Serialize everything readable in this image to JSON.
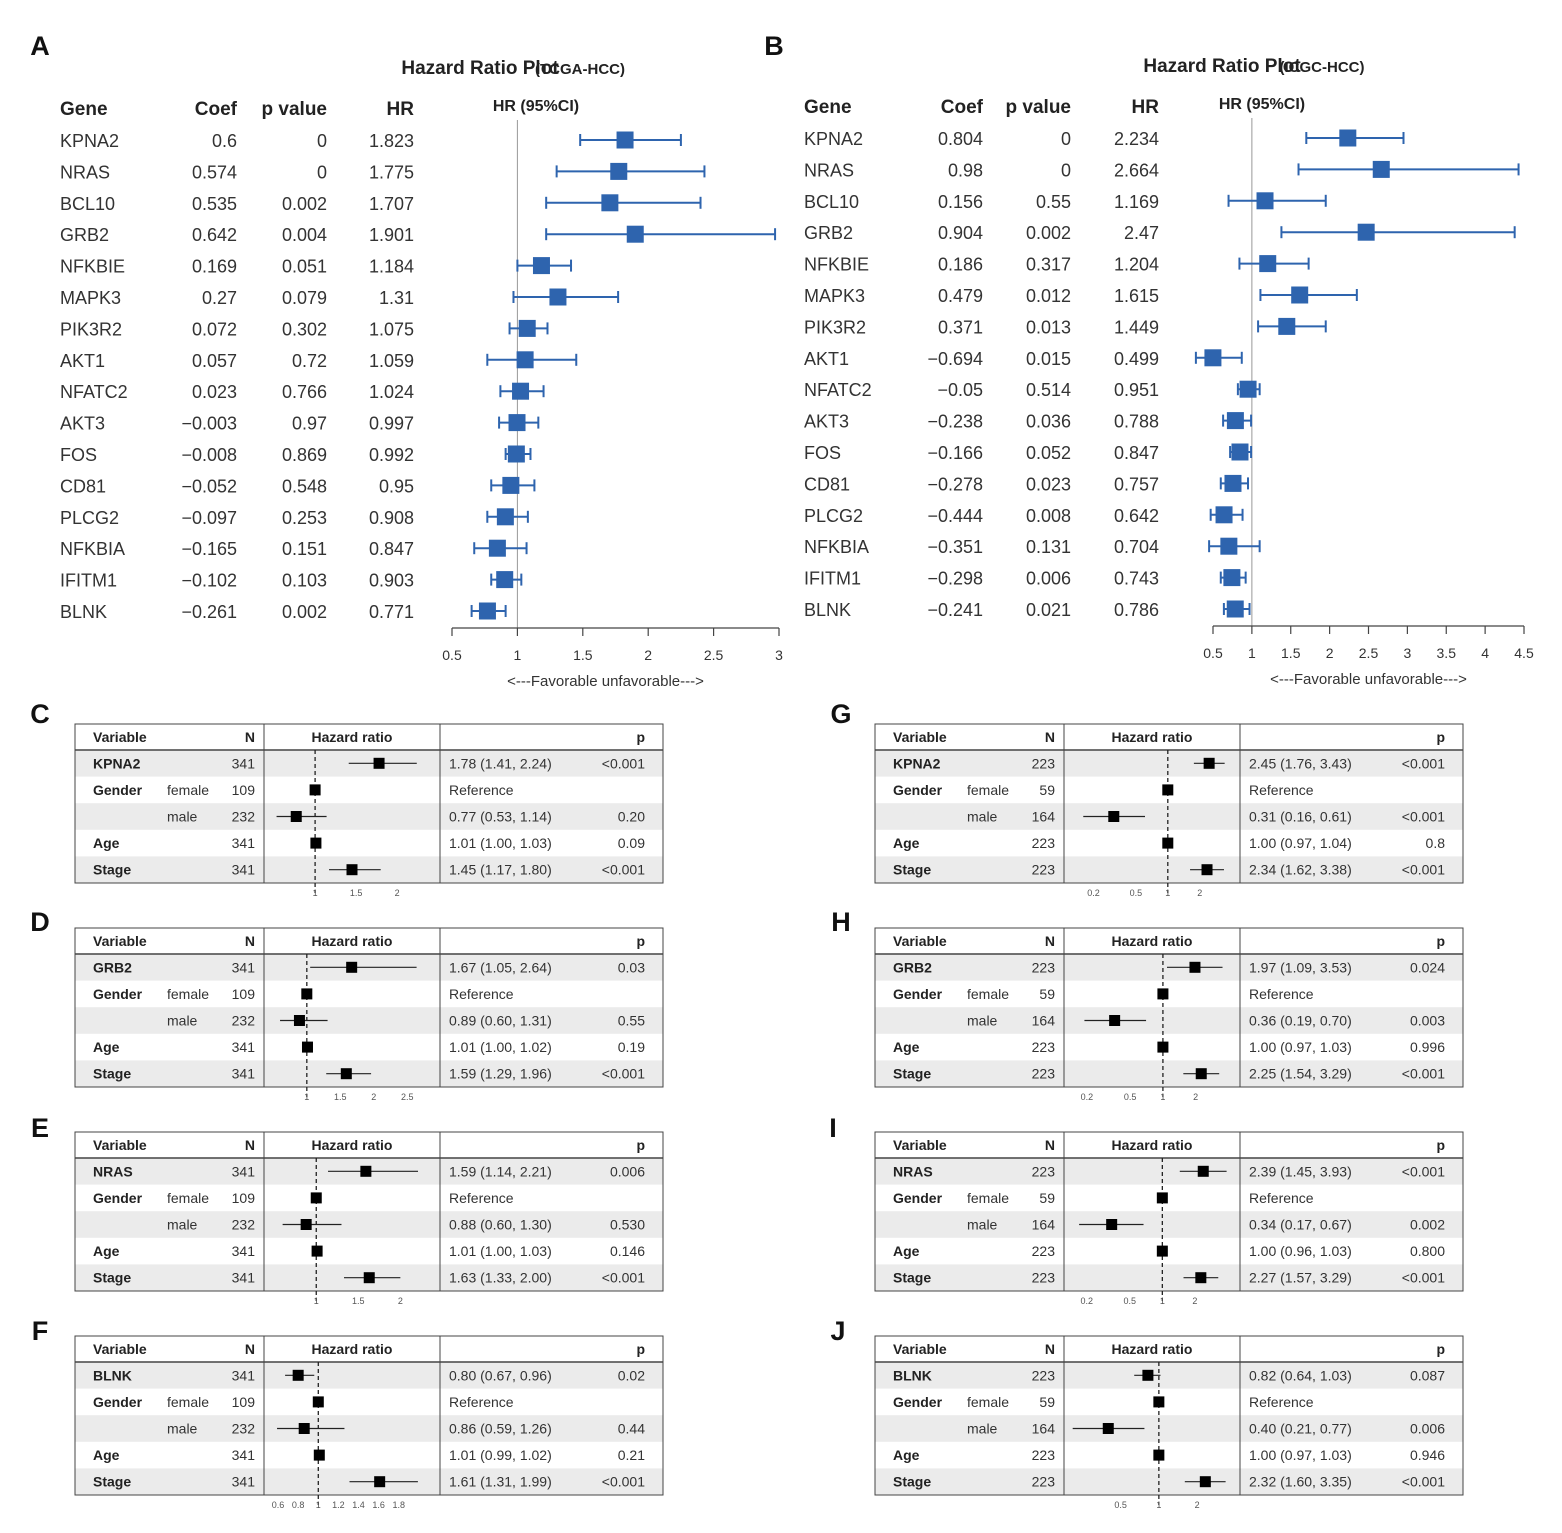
{
  "chart_data": {
    "type": "forest",
    "panels": [
      {
        "label": "A",
        "title": "Hazard Ratio Plot",
        "subtitle": "(TCGA-HCC)",
        "headers": [
          "Gene",
          "Coef",
          "p value",
          "HR",
          "HR (95%CI)"
        ],
        "xlim": [
          0.5,
          3
        ],
        "ticks": [
          "0.5",
          "1",
          "1.5",
          "2",
          "2.5",
          "3"
        ],
        "tick_values": [
          0.5,
          1,
          1.5,
          2,
          2.5,
          3
        ],
        "xnote": "<---Favorable  unfavorable--->",
        "rows": [
          {
            "gene": "KPNA2",
            "coef": "0.6",
            "p": "0",
            "hr": "1.823",
            "v": 1.823,
            "lo": 1.48,
            "hi": 2.25
          },
          {
            "gene": "NRAS",
            "coef": "0.574",
            "p": "0",
            "hr": "1.775",
            "v": 1.775,
            "lo": 1.3,
            "hi": 2.43
          },
          {
            "gene": "BCL10",
            "coef": "0.535",
            "p": "0.002",
            "hr": "1.707",
            "v": 1.707,
            "lo": 1.22,
            "hi": 2.4
          },
          {
            "gene": "GRB2",
            "coef": "0.642",
            "p": "0.004",
            "hr": "1.901",
            "v": 1.901,
            "lo": 1.22,
            "hi": 2.97
          },
          {
            "gene": "NFKBIE",
            "coef": "0.169",
            "p": "0.051",
            "hr": "1.184",
            "v": 1.184,
            "lo": 1.0,
            "hi": 1.41
          },
          {
            "gene": "MAPK3",
            "coef": "0.27",
            "p": "0.079",
            "hr": "1.31",
            "v": 1.31,
            "lo": 0.97,
            "hi": 1.77
          },
          {
            "gene": "PIK3R2",
            "coef": "0.072",
            "p": "0.302",
            "hr": "1.075",
            "v": 1.075,
            "lo": 0.94,
            "hi": 1.23
          },
          {
            "gene": "AKT1",
            "coef": "0.057",
            "p": "0.72",
            "hr": "1.059",
            "v": 1.059,
            "lo": 0.77,
            "hi": 1.45
          },
          {
            "gene": "NFATC2",
            "coef": "0.023",
            "p": "0.766",
            "hr": "1.024",
            "v": 1.024,
            "lo": 0.87,
            "hi": 1.2
          },
          {
            "gene": "AKT3",
            "coef": "−0.003",
            "p": "0.97",
            "hr": "0.997",
            "v": 0.997,
            "lo": 0.86,
            "hi": 1.16
          },
          {
            "gene": "FOS",
            "coef": "−0.008",
            "p": "0.869",
            "hr": "0.992",
            "v": 0.992,
            "lo": 0.91,
            "hi": 1.1
          },
          {
            "gene": "CD81",
            "coef": "−0.052",
            "p": "0.548",
            "hr": "0.95",
            "v": 0.95,
            "lo": 0.8,
            "hi": 1.13
          },
          {
            "gene": "PLCG2",
            "coef": "−0.097",
            "p": "0.253",
            "hr": "0.908",
            "v": 0.908,
            "lo": 0.77,
            "hi": 1.08
          },
          {
            "gene": "NFKBIA",
            "coef": "−0.165",
            "p": "0.151",
            "hr": "0.847",
            "v": 0.847,
            "lo": 0.67,
            "hi": 1.07
          },
          {
            "gene": "IFITM1",
            "coef": "−0.102",
            "p": "0.103",
            "hr": "0.903",
            "v": 0.903,
            "lo": 0.8,
            "hi": 1.03
          },
          {
            "gene": "BLNK",
            "coef": "−0.261",
            "p": "0.002",
            "hr": "0.771",
            "v": 0.771,
            "lo": 0.65,
            "hi": 0.91
          }
        ]
      },
      {
        "label": "B",
        "title": "Hazard Ratio Plot",
        "subtitle": "(ICGC-HCC)",
        "headers": [
          "Gene",
          "Coef",
          "p value",
          "HR",
          "HR (95%CI)"
        ],
        "xlim": [
          0.5,
          4.5
        ],
        "ticks": [
          "0.5",
          "1",
          "1.5",
          "2",
          "2.5",
          "3",
          "3.5",
          "4",
          "4.5"
        ],
        "tick_values": [
          0.5,
          1,
          1.5,
          2,
          2.5,
          3,
          3.5,
          4,
          4.5
        ],
        "xnote": "<---Favorable  unfavorable--->",
        "rows": [
          {
            "gene": "KPNA2",
            "coef": "0.804",
            "p": "0",
            "hr": "2.234",
            "v": 2.234,
            "lo": 1.7,
            "hi": 2.95
          },
          {
            "gene": "NRAS",
            "coef": "0.98",
            "p": "0",
            "hr": "2.664",
            "v": 2.664,
            "lo": 1.6,
            "hi": 4.43
          },
          {
            "gene": "BCL10",
            "coef": "0.156",
            "p": "0.55",
            "hr": "1.169",
            "v": 1.169,
            "lo": 0.7,
            "hi": 1.95
          },
          {
            "gene": "GRB2",
            "coef": "0.904",
            "p": "0.002",
            "hr": "2.47",
            "v": 2.47,
            "lo": 1.38,
            "hi": 4.38
          },
          {
            "gene": "NFKBIE",
            "coef": "0.186",
            "p": "0.317",
            "hr": "1.204",
            "v": 1.204,
            "lo": 0.84,
            "hi": 1.73
          },
          {
            "gene": "MAPK3",
            "coef": "0.479",
            "p": "0.012",
            "hr": "1.615",
            "v": 1.615,
            "lo": 1.11,
            "hi": 2.35
          },
          {
            "gene": "PIK3R2",
            "coef": "0.371",
            "p": "0.013",
            "hr": "1.449",
            "v": 1.449,
            "lo": 1.08,
            "hi": 1.95
          },
          {
            "gene": "AKT1",
            "coef": "−0.694",
            "p": "0.015",
            "hr": "0.499",
            "v": 0.499,
            "lo": 0.28,
            "hi": 0.87
          },
          {
            "gene": "NFATC2",
            "coef": "−0.05",
            "p": "0.514",
            "hr": "0.951",
            "v": 0.951,
            "lo": 0.82,
            "hi": 1.1
          },
          {
            "gene": "AKT3",
            "coef": "−0.238",
            "p": "0.036",
            "hr": "0.788",
            "v": 0.788,
            "lo": 0.63,
            "hi": 0.99
          },
          {
            "gene": "FOS",
            "coef": "−0.166",
            "p": "0.052",
            "hr": "0.847",
            "v": 0.847,
            "lo": 0.72,
            "hi": 0.99
          },
          {
            "gene": "CD81",
            "coef": "−0.278",
            "p": "0.023",
            "hr": "0.757",
            "v": 0.757,
            "lo": 0.6,
            "hi": 0.95
          },
          {
            "gene": "PLCG2",
            "coef": "−0.444",
            "p": "0.008",
            "hr": "0.642",
            "v": 0.642,
            "lo": 0.47,
            "hi": 0.88
          },
          {
            "gene": "NFKBIA",
            "coef": "−0.351",
            "p": "0.131",
            "hr": "0.704",
            "v": 0.704,
            "lo": 0.45,
            "hi": 1.1
          },
          {
            "gene": "IFITM1",
            "coef": "−0.298",
            "p": "0.006",
            "hr": "0.743",
            "v": 0.743,
            "lo": 0.6,
            "hi": 0.92
          },
          {
            "gene": "BLNK",
            "coef": "−0.241",
            "p": "0.021",
            "hr": "0.786",
            "v": 0.786,
            "lo": 0.64,
            "hi": 0.97
          }
        ]
      }
    ],
    "tables": [
      {
        "label": "C",
        "scale": "linear",
        "xlim": [
          0.45,
          2.45
        ],
        "ticks": [
          "1",
          "1.5",
          "2"
        ],
        "rows": [
          {
            "var": "KPNA2",
            "level": "",
            "n": "341",
            "ci": "1.78 (1.41, 2.24)",
            "p": "<0.001",
            "v": 1.78,
            "lo": 1.41,
            "hi": 2.24
          },
          {
            "var": "Gender",
            "level": "female",
            "n": "109",
            "ci": "Reference",
            "p": "",
            "v": 1.0,
            "lo": null,
            "hi": null
          },
          {
            "var": "",
            "level": "male",
            "n": "232",
            "ci": "0.77 (0.53, 1.14)",
            "p": "0.20",
            "v": 0.77,
            "lo": 0.53,
            "hi": 1.14
          },
          {
            "var": "Age",
            "level": "",
            "n": "341",
            "ci": "1.01 (1.00, 1.03)",
            "p": "0.09",
            "v": 1.01,
            "lo": 1.0,
            "hi": 1.03
          },
          {
            "var": "Stage",
            "level": "",
            "n": "341",
            "ci": "1.45 (1.17, 1.80)",
            "p": "<0.001",
            "v": 1.45,
            "lo": 1.17,
            "hi": 1.8
          }
        ]
      },
      {
        "label": "D",
        "scale": "linear",
        "xlim": [
          0.45,
          2.9
        ],
        "ticks": [
          "1",
          "1.5",
          "2",
          "2.5"
        ],
        "rows": [
          {
            "var": "GRB2",
            "level": "",
            "n": "341",
            "ci": "1.67 (1.05, 2.64)",
            "p": "0.03",
            "v": 1.67,
            "lo": 1.05,
            "hi": 2.64
          },
          {
            "var": "Gender",
            "level": "female",
            "n": "109",
            "ci": "Reference",
            "p": "",
            "v": 1.0,
            "lo": null,
            "hi": null
          },
          {
            "var": "",
            "level": "male",
            "n": "232",
            "ci": "0.89 (0.60, 1.31)",
            "p": "0.55",
            "v": 0.89,
            "lo": 0.6,
            "hi": 1.31
          },
          {
            "var": "Age",
            "level": "",
            "n": "341",
            "ci": "1.01 (1.00, 1.02)",
            "p": "0.19",
            "v": 1.01,
            "lo": 1.0,
            "hi": 1.02
          },
          {
            "var": "Stage",
            "level": "",
            "n": "341",
            "ci": "1.59 (1.29, 1.96)",
            "p": "<0.001",
            "v": 1.59,
            "lo": 1.29,
            "hi": 1.96
          }
        ]
      },
      {
        "label": "E",
        "scale": "linear",
        "xlim": [
          0.45,
          2.4
        ],
        "ticks": [
          "1",
          "1.5",
          "2"
        ],
        "rows": [
          {
            "var": "NRAS",
            "level": "",
            "n": "341",
            "ci": "1.59 (1.14, 2.21)",
            "p": "0.006",
            "v": 1.59,
            "lo": 1.14,
            "hi": 2.21
          },
          {
            "var": "Gender",
            "level": "female",
            "n": "109",
            "ci": "Reference",
            "p": "",
            "v": 1.0,
            "lo": null,
            "hi": null
          },
          {
            "var": "",
            "level": "male",
            "n": "232",
            "ci": "0.88 (0.60, 1.30)",
            "p": "0.530",
            "v": 0.88,
            "lo": 0.6,
            "hi": 1.3
          },
          {
            "var": "Age",
            "level": "",
            "n": "341",
            "ci": "1.01 (1.00, 1.03)",
            "p": "0.146",
            "v": 1.01,
            "lo": 1.0,
            "hi": 1.03
          },
          {
            "var": "Stage",
            "level": "",
            "n": "341",
            "ci": "1.63 (1.33, 2.00)",
            "p": "<0.001",
            "v": 1.63,
            "lo": 1.33,
            "hi": 2.0
          }
        ]
      },
      {
        "label": "F",
        "scale": "linear",
        "xlim": [
          0.52,
          2.15
        ],
        "ticks": [
          "0.6",
          "0.8",
          "1",
          "1.2",
          "1.4",
          "1.6",
          "1.8"
        ],
        "rows": [
          {
            "var": "BLNK",
            "level": "",
            "n": "341",
            "ci": "0.80 (0.67, 0.96)",
            "p": "0.02",
            "v": 0.8,
            "lo": 0.67,
            "hi": 0.96
          },
          {
            "var": "Gender",
            "level": "female",
            "n": "109",
            "ci": "Reference",
            "p": "",
            "v": 1.0,
            "lo": null,
            "hi": null
          },
          {
            "var": "",
            "level": "male",
            "n": "232",
            "ci": "0.86 (0.59, 1.26)",
            "p": "0.44",
            "v": 0.86,
            "lo": 0.59,
            "hi": 1.26
          },
          {
            "var": "Age",
            "level": "",
            "n": "341",
            "ci": "1.01 (0.99, 1.02)",
            "p": "0.21",
            "v": 1.01,
            "lo": 0.99,
            "hi": 1.02
          },
          {
            "var": "Stage",
            "level": "",
            "n": "341",
            "ci": "1.61 (1.31, 1.99)",
            "p": "<0.001",
            "v": 1.61,
            "lo": 1.31,
            "hi": 1.99
          }
        ]
      },
      {
        "label": "G",
        "scale": "log",
        "xlim": [
          0.12,
          4.2
        ],
        "ticks": [
          "0.2",
          "0.5",
          "1",
          "2"
        ],
        "rows": [
          {
            "var": "KPNA2",
            "level": "",
            "n": "223",
            "ci": "2.45 (1.76, 3.43)",
            "p": "<0.001",
            "v": 2.45,
            "lo": 1.76,
            "hi": 3.43
          },
          {
            "var": "Gender",
            "level": "female",
            "n": "59",
            "ci": "Reference",
            "p": "",
            "v": 1.0,
            "lo": null,
            "hi": null
          },
          {
            "var": "",
            "level": "male",
            "n": "164",
            "ci": "0.31 (0.16, 0.61)",
            "p": "<0.001",
            "v": 0.31,
            "lo": 0.16,
            "hi": 0.61
          },
          {
            "var": "Age",
            "level": "",
            "n": "223",
            "ci": "1.00 (0.97, 1.04)",
            "p": "0.8",
            "v": 1.0,
            "lo": 0.97,
            "hi": 1.04
          },
          {
            "var": "Stage",
            "level": "",
            "n": "223",
            "ci": "2.34 (1.62, 3.38)",
            "p": "<0.001",
            "v": 2.34,
            "lo": 1.62,
            "hi": 3.38
          }
        ]
      },
      {
        "label": "H",
        "scale": "log",
        "xlim": [
          0.14,
          4.5
        ],
        "ticks": [
          "0.2",
          "0.5",
          "1",
          "2"
        ],
        "rows": [
          {
            "var": "GRB2",
            "level": "",
            "n": "223",
            "ci": "1.97 (1.09, 3.53)",
            "p": "0.024",
            "v": 1.97,
            "lo": 1.09,
            "hi": 3.53
          },
          {
            "var": "Gender",
            "level": "female",
            "n": "59",
            "ci": "Reference",
            "p": "",
            "v": 1.0,
            "lo": null,
            "hi": null
          },
          {
            "var": "",
            "level": "male",
            "n": "164",
            "ci": "0.36 (0.19, 0.70)",
            "p": "0.003",
            "v": 0.36,
            "lo": 0.19,
            "hi": 0.7
          },
          {
            "var": "Age",
            "level": "",
            "n": "223",
            "ci": "1.00 (0.97, 1.03)",
            "p": "0.996",
            "v": 1.0,
            "lo": 0.97,
            "hi": 1.03
          },
          {
            "var": "Stage",
            "level": "",
            "n": "223",
            "ci": "2.25 (1.54, 3.29)",
            "p": "<0.001",
            "v": 2.25,
            "lo": 1.54,
            "hi": 3.29
          }
        ]
      },
      {
        "label": "I",
        "scale": "log",
        "xlim": [
          0.14,
          4.6
        ],
        "ticks": [
          "0.2",
          "0.5",
          "1",
          "2"
        ],
        "rows": [
          {
            "var": "NRAS",
            "level": "",
            "n": "223",
            "ci": "2.39 (1.45, 3.93)",
            "p": "<0.001",
            "v": 2.39,
            "lo": 1.45,
            "hi": 3.93
          },
          {
            "var": "Gender",
            "level": "female",
            "n": "59",
            "ci": "Reference",
            "p": "",
            "v": 1.0,
            "lo": null,
            "hi": null
          },
          {
            "var": "",
            "level": "male",
            "n": "164",
            "ci": "0.34 (0.17, 0.67)",
            "p": "0.002",
            "v": 0.34,
            "lo": 0.17,
            "hi": 0.67
          },
          {
            "var": "Age",
            "level": "",
            "n": "223",
            "ci": "1.00 (0.96, 1.03)",
            "p": "0.800",
            "v": 1.0,
            "lo": 0.96,
            "hi": 1.03
          },
          {
            "var": "Stage",
            "level": "",
            "n": "223",
            "ci": "2.27 (1.57, 3.29)",
            "p": "<0.001",
            "v": 2.27,
            "lo": 1.57,
            "hi": 3.29
          }
        ]
      },
      {
        "label": "J",
        "scale": "log",
        "xlim": [
          0.2,
          3.9
        ],
        "ticks": [
          "0.5",
          "1",
          "2"
        ],
        "rows": [
          {
            "var": "BLNK",
            "level": "",
            "n": "223",
            "ci": "0.82 (0.64, 1.03)",
            "p": "0.087",
            "v": 0.82,
            "lo": 0.64,
            "hi": 1.03
          },
          {
            "var": "Gender",
            "level": "female",
            "n": "59",
            "ci": "Reference",
            "p": "",
            "v": 1.0,
            "lo": null,
            "hi": null
          },
          {
            "var": "",
            "level": "male",
            "n": "164",
            "ci": "0.40 (0.21, 0.77)",
            "p": "0.006",
            "v": 0.4,
            "lo": 0.21,
            "hi": 0.77
          },
          {
            "var": "Age",
            "level": "",
            "n": "223",
            "ci": "1.00 (0.97, 1.03)",
            "p": "0.946",
            "v": 1.0,
            "lo": 0.97,
            "hi": 1.03
          },
          {
            "var": "Stage",
            "level": "",
            "n": "223",
            "ci": "2.32 (1.60, 3.35)",
            "p": "<0.001",
            "v": 2.32,
            "lo": 1.6,
            "hi": 3.35
          }
        ]
      }
    ],
    "table_headers": {
      "variable": "Variable",
      "n": "N",
      "hr": "Hazard ratio",
      "p": "p"
    },
    "colors": {
      "marker": "#2E64AE",
      "line": "#333333",
      "shade": "#EBEBEB",
      "border": "#444444"
    }
  }
}
